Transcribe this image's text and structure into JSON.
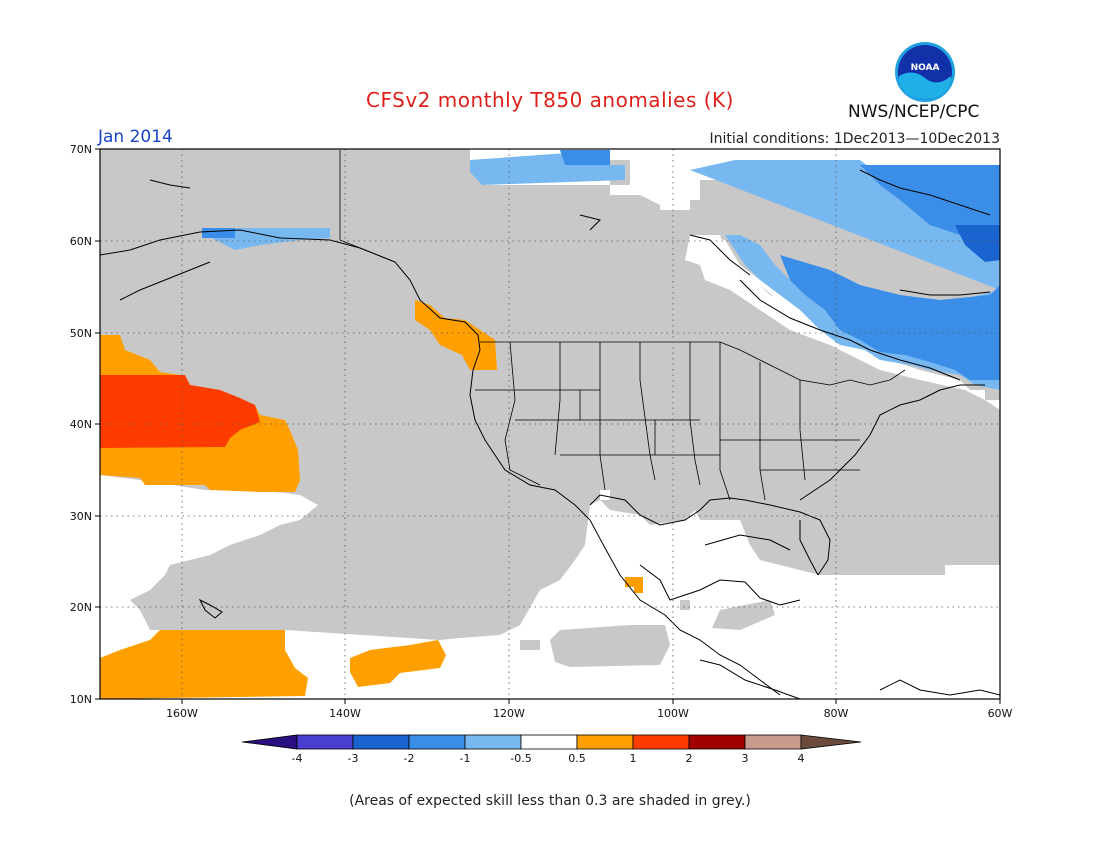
{
  "title": "CFSv2 monthly T850 anomalies (K)",
  "agency": "NWS/NCEP/CPC",
  "logo_text": "NOAA",
  "month": "Jan 2014",
  "initial_conditions": "Initial conditions: 1Dec2013—10Dec2013",
  "footnote": "(Areas of expected skill less than 0.3 are shaded in grey.)",
  "map": {
    "lat_labels": [
      "70N",
      "60N",
      "50N",
      "40N",
      "30N",
      "20N",
      "10N"
    ],
    "lon_labels": [
      "160W",
      "140W",
      "120W",
      "100W",
      "80W",
      "60W"
    ],
    "lon_range": [
      -170,
      -60
    ],
    "lat_range": [
      10,
      70
    ],
    "skill_grey": "#c8c8c8",
    "land_outline": "#000000"
  },
  "colorbar": {
    "labels": [
      "-4",
      "-3",
      "-2",
      "-1",
      "-0.5",
      "0.5",
      "1",
      "2",
      "3",
      "4"
    ],
    "colors": [
      "#2a0f80",
      "#4a3ed0",
      "#1a64d0",
      "#3a8ee8",
      "#78b8f0",
      "#ffffff",
      "#ffa000",
      "#ff3c00",
      "#a00000",
      "#c89c8c",
      "#6a4a3a"
    ]
  }
}
